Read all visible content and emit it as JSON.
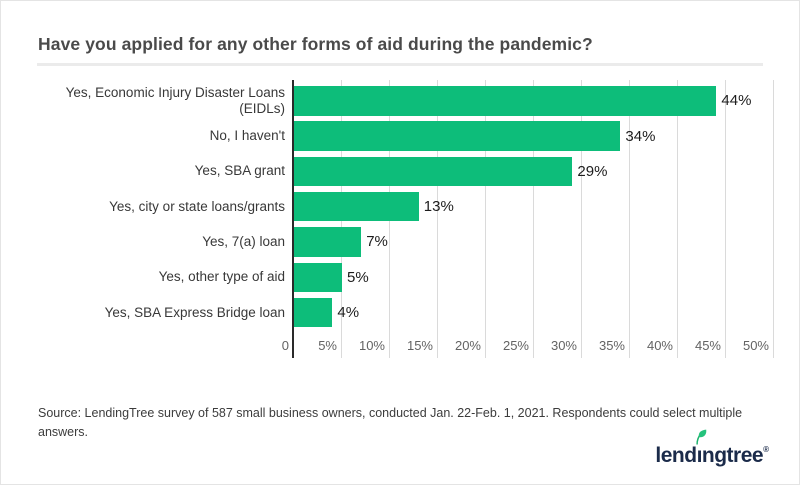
{
  "title": "Have you applied for any other forms of aid during the pandemic?",
  "source_note": "Source: LendingTree survey of 587 small business owners, conducted Jan. 22-Feb. 1, 2021. Respondents could select multiple answers.",
  "logo": {
    "text": "lendingtree",
    "display_parts": {
      "left": "lend",
      "i": "ı",
      "right": "ngtree"
    },
    "reg_mark": "®",
    "text_color": "#1b2b4a",
    "leaf_color": "#25c27c"
  },
  "colors": {
    "bar": "#0dbd7a",
    "title_text": "#4a4a4a",
    "axis_line": "#2a2a2a",
    "gridline": "#dadada",
    "divider": "#ebebeb"
  },
  "chart_data": {
    "type": "bar",
    "orientation": "horizontal",
    "title": "Have you applied for any other forms of aid during the pandemic?",
    "categories": [
      "Yes, Economic Injury Disaster Loans (EIDLs)",
      "No, I haven't",
      "Yes, SBA grant",
      "Yes, city or state loans/grants",
      "Yes, 7(a) loan",
      "Yes, other type of aid",
      "Yes, SBA Express Bridge loan"
    ],
    "values": [
      44,
      34,
      29,
      13,
      7,
      5,
      4
    ],
    "value_labels": [
      "44%",
      "34%",
      "29%",
      "13%",
      "7%",
      "5%",
      "4%"
    ],
    "xlim": [
      0,
      50
    ],
    "xtick_values": [
      0,
      5,
      10,
      15,
      20,
      25,
      30,
      35,
      40,
      45,
      50
    ],
    "xticks": [
      "0",
      "5%",
      "10%",
      "15%",
      "20%",
      "25%",
      "30%",
      "35%",
      "40%",
      "45%",
      "50%"
    ],
    "grid": true,
    "legend": "none"
  }
}
